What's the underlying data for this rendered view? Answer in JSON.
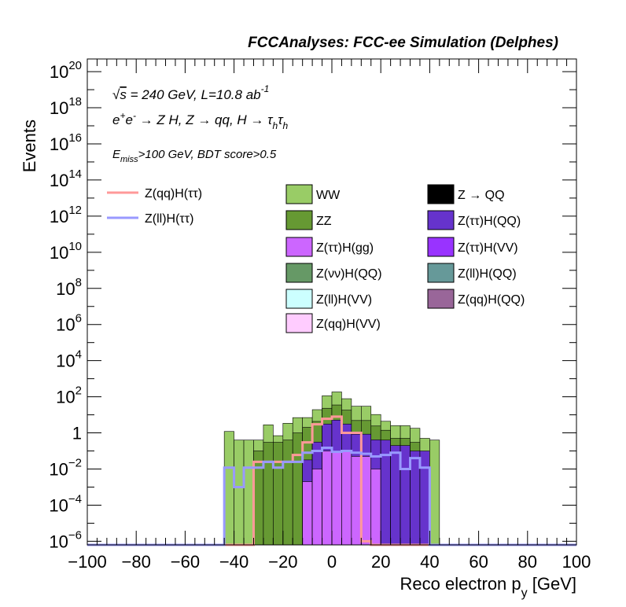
{
  "header": "FCCAnalyses: FCC-ee Simulation (Delphes)",
  "annotations": {
    "line1": "√s = 240 GeV, L=10.8 ab⁻¹",
    "line2": "e⁺e⁻ → Z H, Z → qq, H → τₕτₕ",
    "line3": "E_miss>100 GeV, BDT score>0.5"
  },
  "colors": {
    "WW": "#99cc66",
    "ZZ": "#669933",
    "Z→QQ": "#cc99cc",
    "Z(ττ)H(QQ)": "#6633cc",
    "Z(ττ)H(gg)": "#cc66ff",
    "Z(ττ)H(VV)": "#9933ff",
    "Z(νν)H(QQ)": "#669966",
    "Z(ll)H(QQ)": "#669999",
    "Z(ll)H(VV)": "#ccffff",
    "Z(qq)H(QQ)": "#996699",
    "Z(qq)H(VV)": "#ffccff",
    "Z(qq)H(ττ)": "#ff9999",
    "Z(ll)H(ττ)": "#9999ff"
  },
  "chart_data": {
    "type": "histogram",
    "xlabel": "Reco electron p_y [GeV]",
    "ylabel": "Events",
    "xlim": [
      -100,
      100
    ],
    "ylim_log10": [
      -6.2,
      20.7
    ],
    "ylog": true,
    "xticks": [
      "−100",
      "−80",
      "−60",
      "−40",
      "−20",
      "0",
      "20",
      "40",
      "60",
      "80",
      "100"
    ],
    "yticks": [
      {
        "base": "10",
        "exp": "20"
      },
      {
        "base": "10",
        "exp": "18"
      },
      {
        "base": "10",
        "exp": "16"
      },
      {
        "base": "10",
        "exp": "14"
      },
      {
        "base": "10",
        "exp": "12"
      },
      {
        "base": "10",
        "exp": "10"
      },
      {
        "base": "10",
        "exp": "8"
      },
      {
        "base": "10",
        "exp": "6"
      },
      {
        "base": "10",
        "exp": "4"
      },
      {
        "base": "10",
        "exp": "2"
      },
      {
        "base": "1",
        "exp": ""
      },
      {
        "base": "10",
        "exp": "−2"
      },
      {
        "base": "10",
        "exp": "−4"
      },
      {
        "base": "10",
        "exp": "−6"
      }
    ],
    "ytick_values": [
      20,
      18,
      16,
      14,
      12,
      10,
      8,
      6,
      4,
      2,
      0,
      -2,
      -4,
      -6
    ],
    "stack_bin_width": 4,
    "stack_x_start": -44,
    "stacks": [
      {
        "name": "WW",
        "values": [
          1.2,
          0.4,
          0.4,
          0.3,
          2.5,
          0.4,
          3,
          6,
          5,
          15,
          90,
          150,
          60,
          25,
          25,
          8,
          3,
          2,
          2,
          1.5,
          0.4,
          0.4
        ]
      },
      {
        "name": "ZZ",
        "values": [
          0,
          0,
          0,
          0.1,
          0.3,
          0.3,
          0.4,
          1,
          2,
          4,
          20,
          30,
          15,
          4,
          4,
          2,
          1,
          0.3,
          0.3,
          0.2,
          0,
          0
        ]
      },
      {
        "name": "Z(ττ)H(QQ)",
        "values": [
          0,
          0,
          0,
          0,
          0,
          0,
          0,
          0,
          0.03,
          0.3,
          3,
          5,
          3,
          0.8,
          0.8,
          0.4,
          0.4,
          0.2,
          0.2,
          0.1,
          0.1,
          0
        ]
      },
      {
        "name": "Z(ττ)H(gg)",
        "values": [
          0,
          0,
          0,
          0,
          0,
          0,
          0,
          0,
          0.002,
          0.01,
          0.1,
          0.1,
          0.1,
          0.05,
          0.05,
          0.01,
          0,
          0,
          0,
          0,
          0,
          0
        ]
      }
    ],
    "overlay_bin_width": 4,
    "overlay_x_start": -44,
    "overlays": [
      {
        "name": "Z(qq)H(ττ)",
        "values": [
          0,
          0,
          0,
          0.025,
          0.025,
          0.025,
          0.025,
          0.06,
          0.3,
          3,
          6,
          8,
          1,
          1,
          1e-06,
          0,
          0,
          0,
          0,
          0,
          0,
          0
        ]
      },
      {
        "name": "Z(ll)H(ττ)",
        "values": [
          0.012,
          0.001,
          0.012,
          0.012,
          0.025,
          0.012,
          0.025,
          0.025,
          0.08,
          0.1,
          0.15,
          0.09,
          0.1,
          0.08,
          0.07,
          0.05,
          0.06,
          0.08,
          0.01,
          0.04,
          0.012,
          0
        ]
      }
    ],
    "legend": {
      "lines": [
        "Z(qq)H(ττ)",
        "Z(ll)H(ττ)"
      ],
      "boxes_col1": [
        "WW",
        "ZZ",
        "Z(ττ)H(gg)",
        "Z(νν)H(QQ)",
        "Z(ll)H(VV)",
        "Z(qq)H(VV)"
      ],
      "boxes_col2": [
        "Z → QQ",
        "Z(ττ)H(QQ)",
        "Z(ττ)H(VV)",
        "Z(ll)H(QQ)",
        "Z(qq)H(QQ)"
      ]
    }
  }
}
